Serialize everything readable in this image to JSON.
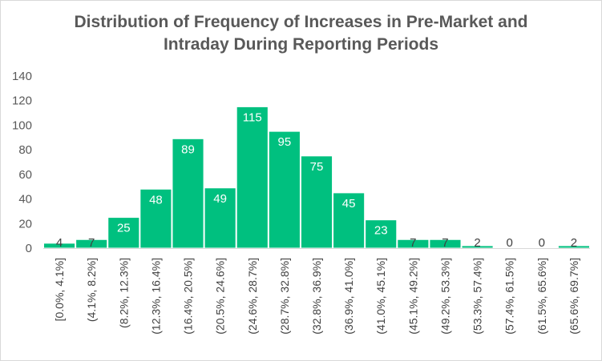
{
  "chart_data": {
    "type": "bar",
    "title": "Distribution of Frequency of Increases in Pre-Market and Intraday During Reporting Periods",
    "title_lines": [
      "Distribution of Frequency of Increases in Pre-Market and",
      "Intraday During Reporting Periods"
    ],
    "categories": [
      "[0.0%, 4.1%]",
      "(4.1%, 8.2%]",
      "(8.2%, 12.3%]",
      "(12.3%, 16.4%]",
      "(16.4%, 20.5%]",
      "(20.5%, 24.6%]",
      "(24.6%, 28.7%]",
      "(28.7%, 32.8%]",
      "(32.8%, 36.9%]",
      "(36.9%, 41.0%]",
      "(41.0%, 45.1%]",
      "(45.1%, 49.2%]",
      "(49.2%, 53.3%]",
      "(53.3%, 57.4%]",
      "(57.4%, 61.5%]",
      "(61.5%, 65.6%]",
      "(65.6%, 69.7%]"
    ],
    "values": [
      4,
      7,
      25,
      48,
      89,
      49,
      115,
      95,
      75,
      45,
      23,
      7,
      7,
      2,
      0,
      0,
      2
    ],
    "yticks": [
      0,
      20,
      40,
      60,
      80,
      100,
      120,
      140
    ],
    "ylim": [
      0,
      140
    ],
    "xlabel": "",
    "ylabel": "",
    "grid": false,
    "legend": "none",
    "bar_color": "#00c07f"
  }
}
